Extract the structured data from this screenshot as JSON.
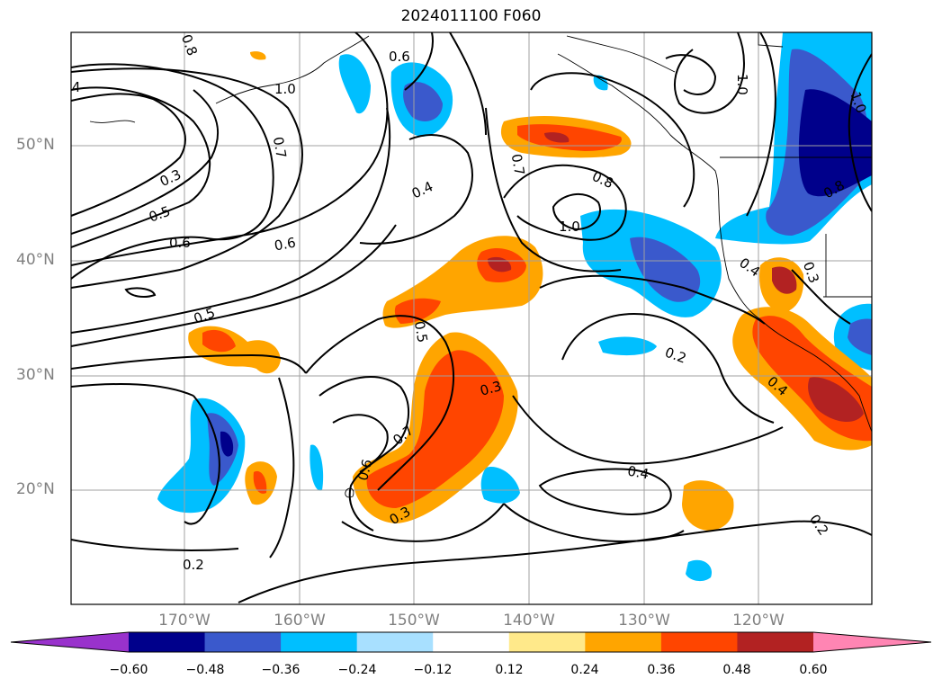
{
  "title": "2024011100 F060",
  "lat_labels": [
    "50°N",
    "40°N",
    "30°N",
    "20°N"
  ],
  "lon_labels": [
    "170°W",
    "160°W",
    "150°W",
    "140°W",
    "130°W",
    "120°W"
  ],
  "colorbar": {
    "ticks": [
      "−0.60",
      "−0.48",
      "−0.36",
      "−0.24",
      "−0.12",
      "0.12",
      "0.24",
      "0.36",
      "0.48",
      "0.60"
    ],
    "colors": [
      "#9932cc",
      "#00008b",
      "#3a59cc",
      "#00bfff",
      "#a8e0ff",
      "#ffffff",
      "#ffe98a",
      "#ffa500",
      "#ff4500",
      "#b22222",
      "#ff85b3"
    ]
  },
  "contour_labels": [
    "0.8",
    "0.6",
    "1.0",
    "1.0",
    "1.0",
    "0.7",
    "0.3",
    "0.5",
    "0.6",
    "0.6",
    "0.4",
    "0.7",
    "0.8",
    "1.0",
    "0.5",
    "0.5",
    "0.4",
    "0.2",
    "0.3",
    "0.7",
    "0.6",
    "0.3",
    "0.4",
    "0.2",
    "0.2",
    "0.4",
    "0.3",
    "0.8",
    "4"
  ]
}
